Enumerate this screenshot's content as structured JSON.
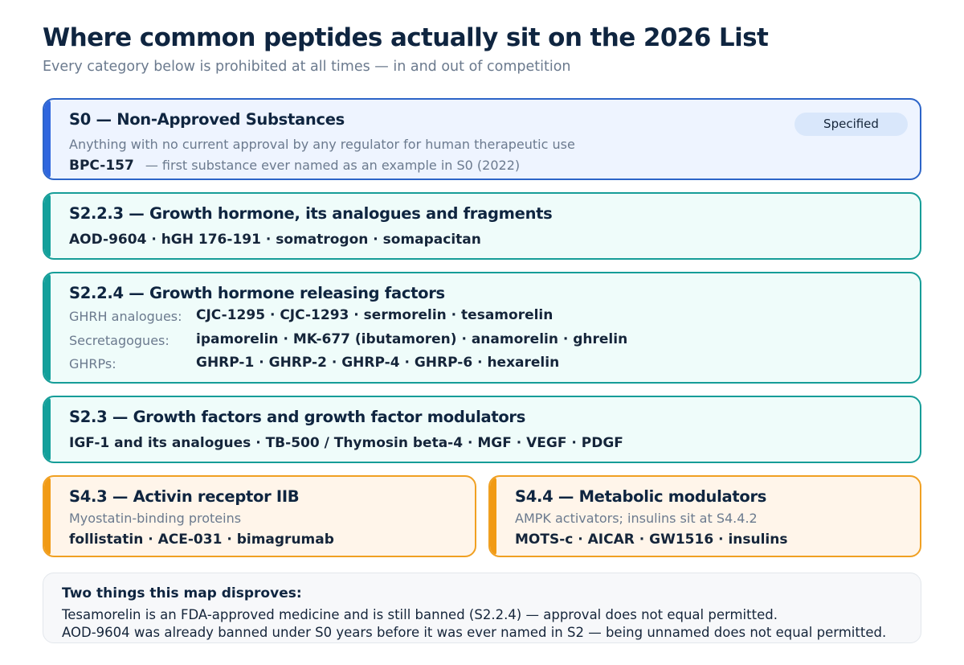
{
  "header": {
    "title": "Where common peptides actually sit on the 2026 List",
    "subtitle": "Every category below is prohibited at all times — in and out of competition"
  },
  "s0": {
    "heading": "S0 — Non-Approved Substances",
    "badge": "Specified",
    "description": "Anything with no current approval by any regulator for human therapeutic use",
    "substance": "BPC-157",
    "note": "— first substance ever named as an example in S0 (2022)",
    "accent_color": "#2f66de"
  },
  "s223": {
    "heading": "S2.2.3 — Growth hormone, its analogues and fragments",
    "items": "AOD-9604 · hGH 176-191 · somatrogon · somapacitan",
    "accent_color": "#13a09b"
  },
  "s224": {
    "heading": "S2.2.4 — Growth hormone releasing factors",
    "rows": [
      {
        "label": "GHRH analogues:",
        "items": "CJC-1295 · CJC-1293 · sermorelin · tesamorelin"
      },
      {
        "label": "Secretagogues:",
        "items": "ipamorelin · MK-677 (ibutamoren) · anamorelin · ghrelin"
      },
      {
        "label": "GHRPs:",
        "items": "GHRP-1 · GHRP-2 · GHRP-4 · GHRP-6 · hexarelin"
      }
    ],
    "accent_color": "#13a09b"
  },
  "s23": {
    "heading": "S2.3 — Growth factors and growth factor modulators",
    "items": "IGF-1 and its analogues · TB-500 / Thymosin beta-4 · MGF · VEGF · PDGF",
    "accent_color": "#13a09b"
  },
  "s43": {
    "heading": "S4.3 — Activin receptor IIB",
    "description": "Myostatin-binding proteins",
    "items": "follistatin · ACE-031 · bimagrumab",
    "accent_color": "#f19a14"
  },
  "s44": {
    "heading": "S4.4 — Metabolic modulators",
    "description": "AMPK activators; insulins sit at S4.4.2",
    "items": "MOTS-c · AICAR · GW1516 · insulins",
    "accent_color": "#f19a14"
  },
  "callout": {
    "title": "Two things this map disproves:",
    "lines": [
      "Tesamorelin is an FDA-approved medicine and is still banned (S2.2.4) — approval does not equal permitted.",
      "AOD-9604 was already banned under S0 years before it was ever named in S2 — being unnamed does not equal permitted."
    ]
  }
}
